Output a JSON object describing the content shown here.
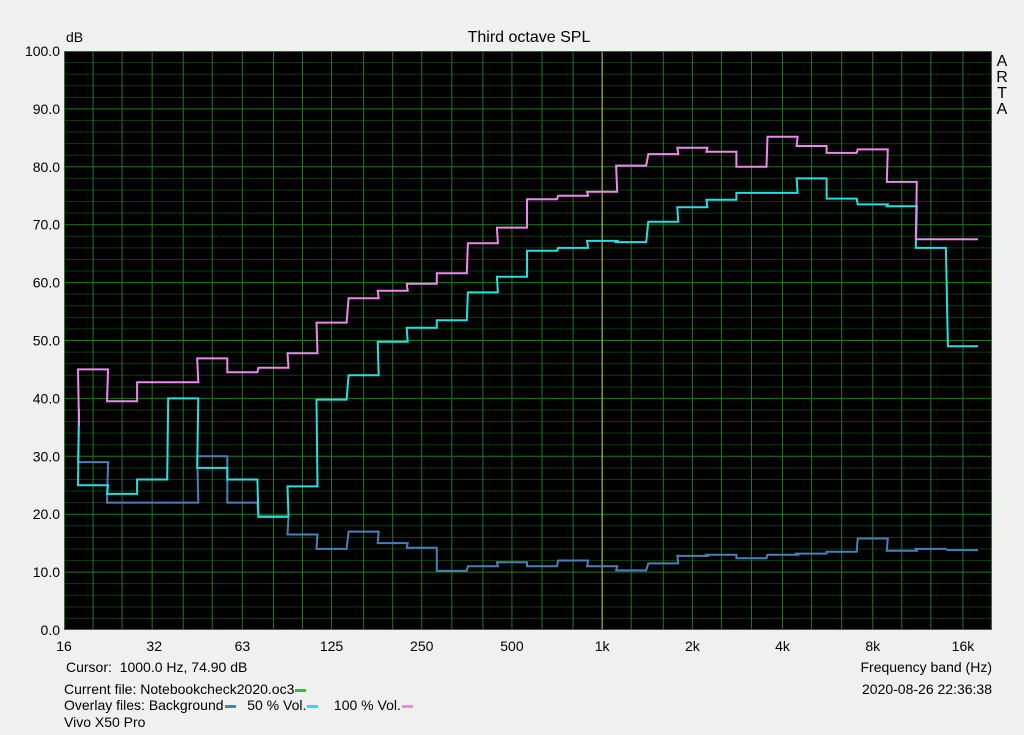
{
  "chart_data": {
    "type": "line",
    "title": "Third octave SPL",
    "ylabel": "dB",
    "xlabel": "Frequency band (Hz)",
    "side_label": "ARTA",
    "xscale": "log",
    "xlim": [
      16,
      20000
    ],
    "ylim": [
      0,
      100
    ],
    "grid": true,
    "x_ticks": [
      "16",
      "32",
      "63",
      "125",
      "250",
      "500",
      "1k",
      "2k",
      "4k",
      "8k",
      "16k"
    ],
    "y_ticks": [
      "0.0",
      "10.0",
      "20.0",
      "30.0",
      "40.0",
      "50.0",
      "60.0",
      "70.0",
      "80.0",
      "90.0",
      "100.0"
    ],
    "bands": [
      16,
      20,
      25,
      31.5,
      40,
      50,
      63,
      80,
      100,
      125,
      160,
      200,
      250,
      315,
      400,
      500,
      630,
      800,
      1000,
      1250,
      1600,
      2000,
      2500,
      3150,
      4000,
      5000,
      6300,
      8000,
      10000,
      12500,
      16000
    ],
    "series": [
      {
        "name": "Background",
        "color": "#4a7fb8",
        "values": [
          37,
          29,
          22,
          22,
          22,
          30,
          22,
          19.5,
          16.5,
          14,
          17,
          15,
          14.2,
          10.2,
          11,
          11.7,
          11,
          12,
          11,
          10.3,
          11.5,
          12.8,
          13,
          12.4,
          13,
          13.2,
          13.5,
          15.8,
          13.7,
          14,
          13.8
        ]
      },
      {
        "name": "50 % Vol.",
        "color": "#25e0e0",
        "values": [
          38,
          25,
          23.5,
          26,
          40,
          28,
          26,
          19.6,
          24.8,
          39.8,
          44,
          49.8,
          52.2,
          53.5,
          58.3,
          61,
          65.5,
          66,
          67.2,
          67,
          70.5,
          73,
          74.3,
          75.5,
          75.5,
          78,
          74.5,
          73.5,
          73.2,
          66,
          49
        ]
      },
      {
        "name": "100 % Vol.",
        "color": "#ee88ee",
        "values": [
          35.5,
          45,
          39.5,
          42.8,
          42.8,
          46.9,
          44.5,
          45.3,
          47.8,
          53.1,
          57.3,
          58.6,
          59.8,
          61.6,
          66.8,
          69.5,
          74.4,
          75,
          75.7,
          80.2,
          82.2,
          83.3,
          82.6,
          80,
          85.2,
          83.6,
          82.4,
          83,
          77.4,
          67.5,
          67.5
        ]
      }
    ]
  },
  "cursor": {
    "label": "Cursor:",
    "value": "1000.0 Hz, 74.90 dB"
  },
  "current_file": {
    "label": "Current file:",
    "value": "Notebookcheck2020.oc3",
    "color": "#22cc22"
  },
  "overlay": {
    "label": "Overlay files:"
  },
  "timestamp": "2020-08-26   22:36:38",
  "device": "Vivo X50 Pro"
}
